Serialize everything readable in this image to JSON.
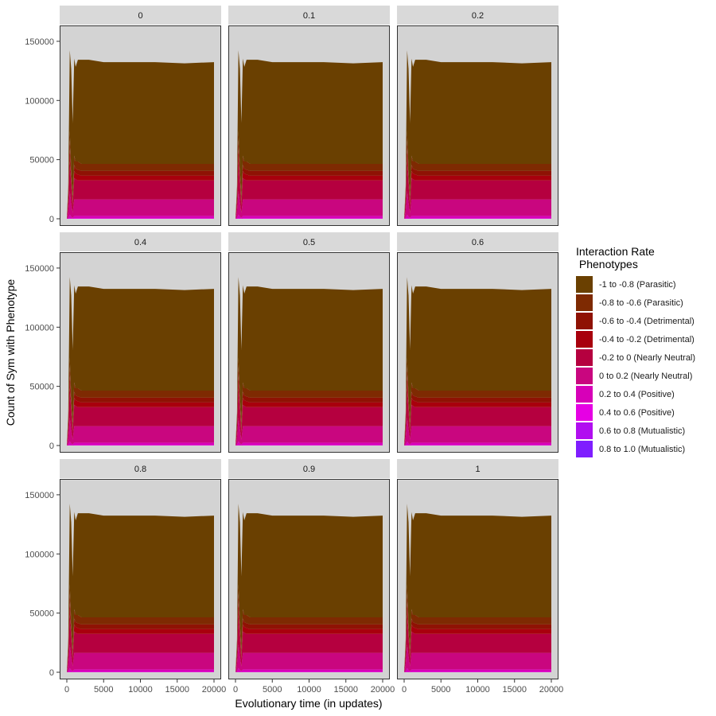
{
  "chart_data": {
    "type": "area",
    "stacked": true,
    "facet_titles": [
      "0",
      "0.1",
      "0.2",
      "0.4",
      "0.5",
      "0.6",
      "0.8",
      "0.9",
      "1"
    ],
    "xlabel": "Evolutionary time (in updates)",
    "ylabel": "Count of Sym with Phenotype",
    "xlim": [
      0,
      20000
    ],
    "ylim": [
      0,
      150000
    ],
    "x_ticks": [
      0,
      5000,
      10000,
      15000,
      20000
    ],
    "x_tick_labels": [
      "0",
      "5000",
      "10000",
      "15000",
      "20000"
    ],
    "y_ticks": [
      0,
      50000,
      100000,
      150000
    ],
    "y_tick_labels": [
      "0",
      "50000",
      "100000",
      "150000"
    ],
    "x": [
      0,
      200,
      400,
      600,
      800,
      1000,
      1200,
      1500,
      2000,
      3000,
      5000,
      8000,
      12000,
      16000,
      20000
    ],
    "legend_title": "Interaction Rate\n Phenotypes",
    "legend_position": "right",
    "series": [
      {
        "name": "-1 to -0.8 (Parasitic)",
        "color": "#6a4001",
        "values": [
          0,
          5000,
          68000,
          85000,
          62000,
          82000,
          80000,
          86000,
          88000,
          88000,
          86000,
          86000,
          86000,
          85000,
          86000
        ]
      },
      {
        "name": "-0.8 to -0.6 (Parasitic)",
        "color": "#7e2a02",
        "values": [
          0,
          2000,
          8000,
          6000,
          4000,
          8000,
          6000,
          7000,
          6000,
          6000,
          6000,
          6000,
          6000,
          6000,
          6000
        ]
      },
      {
        "name": "-0.6 to -0.4 (Detrimental)",
        "color": "#8f1204",
        "values": [
          0,
          2000,
          8000,
          3000,
          2000,
          5000,
          4000,
          4000,
          4000,
          4000,
          4000,
          4000,
          4000,
          4000,
          4000
        ]
      },
      {
        "name": "-0.4 to -0.2 (Detrimental)",
        "color": "#a8000d",
        "values": [
          0,
          3000,
          10000,
          4000,
          2000,
          6000,
          5000,
          5000,
          4000,
          4000,
          4000,
          4000,
          4000,
          4000,
          4000
        ]
      },
      {
        "name": "-0.2 to 0 (Nearly Neutral)",
        "color": "#b5003f",
        "values": [
          0,
          8000,
          25000,
          15000,
          6000,
          18000,
          17000,
          16000,
          16000,
          16000,
          16000,
          16000,
          16000,
          16000,
          16000
        ]
      },
      {
        "name": "0 to 0.2 (Nearly Neutral)",
        "color": "#c9067f",
        "values": [
          0,
          6000,
          20000,
          12000,
          4000,
          14000,
          14000,
          14000,
          14000,
          14000,
          14000,
          14000,
          14000,
          14000,
          14000
        ]
      },
      {
        "name": "0.2 to 0.4 (Positive)",
        "color": "#d700b8",
        "values": [
          0,
          1000,
          3000,
          1500,
          800,
          2000,
          2000,
          2000,
          2000,
          2000,
          2000,
          2000,
          2000,
          2000,
          2000
        ]
      },
      {
        "name": "0.4 to 0.6 (Positive)",
        "color": "#e600e4",
        "values": [
          0,
          0,
          500,
          300,
          200,
          400,
          400,
          400,
          400,
          400,
          400,
          400,
          400,
          400,
          400
        ]
      },
      {
        "name": "0.6 to 0.8 (Mutualistic)",
        "color": "#b10ef0",
        "values": [
          0,
          0,
          0,
          0,
          0,
          0,
          0,
          0,
          0,
          0,
          0,
          0,
          0,
          0,
          0
        ]
      },
      {
        "name": "0.8 to 1.0 (Mutualistic)",
        "color": "#7f1eff",
        "values": [
          0,
          0,
          0,
          0,
          0,
          0,
          0,
          0,
          0,
          0,
          0,
          0,
          0,
          0,
          0
        ]
      }
    ]
  }
}
